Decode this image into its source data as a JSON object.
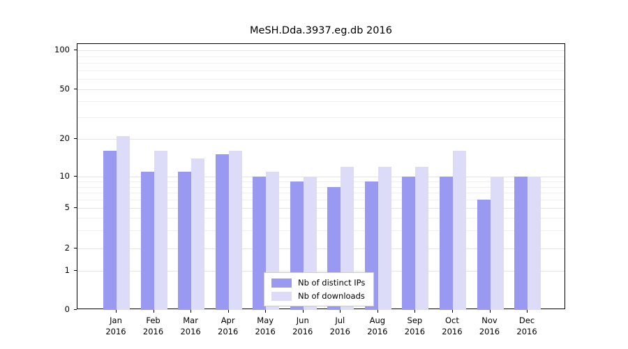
{
  "chart_data": {
    "type": "bar",
    "title": "MeSH.Dda.3937.eg.db 2016",
    "categories": [
      "Jan",
      "Feb",
      "Mar",
      "Apr",
      "May",
      "Jun",
      "Jul",
      "Aug",
      "Sep",
      "Oct",
      "Nov",
      "Dec"
    ],
    "category_year": "2016",
    "series": [
      {
        "name": "Nb of distinct IPs",
        "color": "#9a99f2",
        "values": [
          16,
          11,
          11,
          15,
          10,
          9,
          8,
          9,
          10,
          10,
          6,
          10
        ]
      },
      {
        "name": "Nb of downloads",
        "color": "#dcdbf8",
        "values": [
          21,
          16,
          14,
          16,
          11,
          10,
          12,
          12,
          12,
          16,
          10,
          10
        ]
      }
    ],
    "yticks": [
      0,
      1,
      2,
      5,
      10,
      20,
      50,
      100
    ],
    "minor_gridline_values": [
      3,
      4,
      6,
      7,
      8,
      9,
      30,
      40,
      60,
      70,
      80,
      90
    ],
    "ylim": [
      0,
      100
    ],
    "yscale": "log-like",
    "xlabel": "",
    "ylabel": "",
    "grid": true,
    "legend_position": "bottom-center"
  }
}
